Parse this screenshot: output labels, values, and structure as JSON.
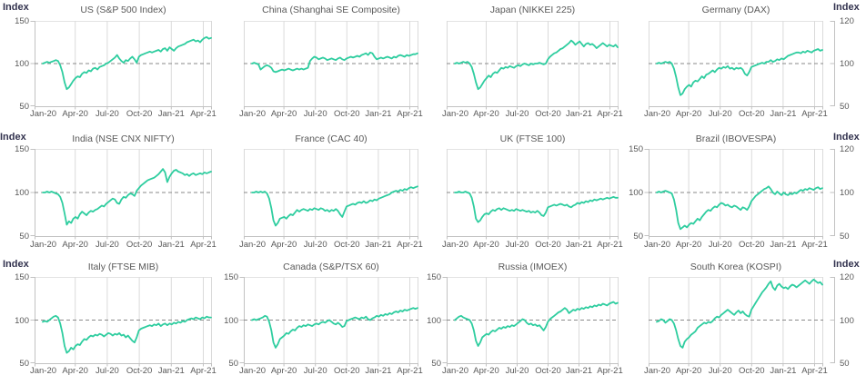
{
  "figure": {
    "unit_label": "Index"
  },
  "palette": {
    "line": "#2ecd9f",
    "baseline_dash": "#8a8a8a",
    "grid": "#dadada",
    "frame": "#e3e3e3",
    "axis": "#c2c2c2",
    "tick_text": "#595959",
    "title_text": "#595959",
    "index_label_text": "#32324e",
    "background": "#ffffff"
  },
  "chart_data": [
    {
      "type": "line",
      "title": "US (S&P 500 Index)",
      "x_ticks": [
        "Jan-20",
        "Apr-20",
        "Jul-20",
        "Oct-20",
        "Jan-21",
        "Apr-21"
      ],
      "ylim": [
        50,
        150
      ],
      "baseline": 100,
      "y_left_labels": [
        "150",
        "100",
        "50"
      ],
      "y_right_labels": null,
      "values": [
        100,
        101,
        102,
        101,
        102,
        103,
        104,
        103,
        98,
        90,
        78,
        70,
        72,
        76,
        80,
        83,
        85,
        84,
        88,
        90,
        89,
        92,
        91,
        94,
        95,
        93,
        96,
        97,
        98,
        100,
        101,
        103,
        105,
        107,
        110,
        106,
        103,
        101,
        104,
        103,
        106,
        108,
        105,
        101,
        108,
        110,
        111,
        112,
        113,
        114,
        113,
        114,
        115,
        116,
        114,
        117,
        118,
        115,
        119,
        117,
        115,
        118,
        120,
        121,
        122,
        123,
        125,
        126,
        127,
        128,
        126,
        127,
        125,
        128,
        130,
        131,
        129,
        130
      ]
    },
    {
      "type": "line",
      "title": "China (Shanghai SE Composite)",
      "x_ticks": [
        "Jan-20",
        "Apr-20",
        "Jul-20",
        "Oct-20",
        "Jan-21",
        "Apr-21"
      ],
      "ylim": [
        50,
        150
      ],
      "baseline": 100,
      "y_left_labels": null,
      "y_right_labels": null,
      "values": [
        100,
        101,
        100,
        99,
        93,
        95,
        97,
        98,
        97,
        95,
        91,
        90,
        91,
        92,
        93,
        92,
        93,
        94,
        93,
        92,
        93,
        94,
        93,
        94,
        93,
        94,
        95,
        103,
        106,
        108,
        107,
        105,
        106,
        107,
        106,
        104,
        105,
        106,
        105,
        104,
        106,
        107,
        105,
        104,
        106,
        107,
        108,
        107,
        108,
        109,
        108,
        110,
        111,
        112,
        110,
        113,
        112,
        108,
        105,
        106,
        107,
        106,
        107,
        108,
        107,
        106,
        108,
        107,
        109,
        110,
        109,
        108,
        110,
        109,
        110,
        111,
        111,
        112
      ]
    },
    {
      "type": "line",
      "title": "Japan (NIKKEI 225)",
      "x_ticks": [
        "Jan-20",
        "Apr-20",
        "Jul-20",
        "Oct-20",
        "Jan-21",
        "Apr-21"
      ],
      "ylim": [
        50,
        150
      ],
      "baseline": 100,
      "y_left_labels": null,
      "y_right_labels": null,
      "values": [
        100,
        101,
        100,
        101,
        102,
        101,
        102,
        100,
        96,
        88,
        78,
        70,
        72,
        76,
        80,
        83,
        86,
        84,
        88,
        90,
        89,
        92,
        95,
        94,
        96,
        95,
        97,
        96,
        95,
        97,
        98,
        97,
        99,
        100,
        99,
        98,
        100,
        99,
        100,
        100,
        101,
        100,
        99,
        100,
        105,
        108,
        110,
        112,
        113,
        115,
        117,
        118,
        120,
        122,
        124,
        127,
        125,
        122,
        124,
        126,
        123,
        120,
        123,
        124,
        122,
        123,
        121,
        118,
        120,
        122,
        124,
        122,
        120,
        122,
        121,
        120,
        122,
        119
      ]
    },
    {
      "type": "line",
      "title": "Germany (DAX)",
      "x_ticks": [
        "Jan-20",
        "Apr-20",
        "Jul-20",
        "Oct-20",
        "Jan-21",
        "Apr-21"
      ],
      "ylim": [
        50,
        150
      ],
      "baseline": 100,
      "y_left_labels": null,
      "y_right_labels": [
        "120",
        "100",
        "50"
      ],
      "values": [
        100,
        101,
        100,
        101,
        102,
        101,
        102,
        100,
        94,
        84,
        72,
        63,
        65,
        70,
        73,
        75,
        73,
        78,
        80,
        79,
        82,
        85,
        83,
        87,
        88,
        90,
        92,
        90,
        93,
        95,
        94,
        96,
        95,
        97,
        94,
        95,
        93,
        95,
        94,
        95,
        93,
        88,
        86,
        90,
        96,
        97,
        98,
        99,
        100,
        101,
        100,
        102,
        102,
        104,
        102,
        103,
        105,
        104,
        106,
        105,
        107,
        109,
        110,
        111,
        112,
        113,
        113,
        112,
        114,
        113,
        115,
        114,
        113,
        115,
        116,
        117,
        115,
        116
      ]
    },
    {
      "type": "line",
      "title": "India (NSE CNX NIFTY)",
      "x_ticks": [
        "Jan-20",
        "Apr-20",
        "Jul-20",
        "Oct-20",
        "Jan-21",
        "Apr-21"
      ],
      "ylim": [
        50,
        150
      ],
      "baseline": 100,
      "y_left_labels": [
        "150",
        "100",
        "50"
      ],
      "y_right_labels": null,
      "values": [
        100,
        100,
        101,
        100,
        101,
        100,
        99,
        98,
        95,
        88,
        76,
        63,
        67,
        65,
        70,
        72,
        70,
        75,
        78,
        76,
        74,
        77,
        79,
        78,
        80,
        81,
        83,
        85,
        84,
        87,
        89,
        91,
        93,
        92,
        88,
        87,
        92,
        95,
        94,
        97,
        99,
        98,
        96,
        102,
        105,
        108,
        110,
        112,
        114,
        115,
        116,
        117,
        119,
        121,
        124,
        127,
        123,
        112,
        118,
        122,
        125,
        126,
        124,
        123,
        122,
        120,
        121,
        119,
        121,
        122,
        120,
        121,
        122,
        121,
        123,
        122,
        123,
        124
      ]
    },
    {
      "type": "line",
      "title": "France (CAC 40)",
      "x_ticks": [
        "Jan-20",
        "Apr-20",
        "Jul-20",
        "Oct-20",
        "Jan-21",
        "Apr-21"
      ],
      "ylim": [
        50,
        150
      ],
      "baseline": 100,
      "y_left_labels": null,
      "y_right_labels": null,
      "values": [
        100,
        100,
        101,
        100,
        101,
        100,
        101,
        99,
        93,
        82,
        68,
        62,
        65,
        70,
        71,
        72,
        70,
        73,
        75,
        74,
        77,
        80,
        78,
        80,
        81,
        80,
        79,
        81,
        80,
        82,
        81,
        80,
        82,
        81,
        79,
        80,
        78,
        80,
        79,
        81,
        79,
        75,
        72,
        78,
        84,
        85,
        86,
        87,
        86,
        88,
        89,
        88,
        90,
        88,
        89,
        91,
        90,
        92,
        91,
        93,
        94,
        95,
        96,
        97,
        98,
        100,
        101,
        102,
        101,
        103,
        102,
        104,
        103,
        105,
        106,
        105,
        106,
        107
      ]
    },
    {
      "type": "line",
      "title": "UK (FTSE 100)",
      "x_ticks": [
        "Jan-20",
        "Apr-20",
        "Jul-20",
        "Oct-20",
        "Jan-21",
        "Apr-21"
      ],
      "ylim": [
        50,
        150
      ],
      "baseline": 100,
      "y_left_labels": null,
      "y_right_labels": null,
      "values": [
        100,
        100,
        101,
        100,
        100,
        101,
        100,
        99,
        94,
        84,
        70,
        66,
        68,
        72,
        75,
        76,
        75,
        78,
        80,
        79,
        81,
        82,
        80,
        82,
        81,
        80,
        79,
        80,
        79,
        81,
        80,
        79,
        80,
        79,
        78,
        79,
        77,
        78,
        77,
        79,
        77,
        74,
        73,
        77,
        83,
        84,
        85,
        86,
        85,
        86,
        87,
        86,
        85,
        86,
        84,
        83,
        85,
        86,
        88,
        87,
        89,
        88,
        90,
        89,
        91,
        90,
        92,
        91,
        92,
        93,
        92,
        93,
        94,
        93,
        94,
        95,
        94,
        94
      ]
    },
    {
      "type": "line",
      "title": "Brazil (IBOVESPA)",
      "x_ticks": [
        "Jan-20",
        "Apr-20",
        "Jul-20",
        "Oct-20",
        "Jan-21",
        "Apr-21"
      ],
      "ylim": [
        50,
        150
      ],
      "baseline": 100,
      "y_left_labels": [
        "150",
        "100",
        "50"
      ],
      "y_right_labels": [
        "120",
        "100",
        "50"
      ],
      "values": [
        100,
        101,
        100,
        101,
        102,
        101,
        100,
        99,
        92,
        80,
        65,
        58,
        60,
        62,
        60,
        63,
        65,
        64,
        67,
        70,
        68,
        72,
        75,
        78,
        80,
        79,
        82,
        84,
        83,
        86,
        88,
        87,
        85,
        86,
        84,
        83,
        85,
        84,
        82,
        80,
        83,
        82,
        80,
        84,
        90,
        93,
        96,
        98,
        100,
        102,
        104,
        105,
        107,
        104,
        100,
        98,
        101,
        99,
        97,
        100,
        98,
        97,
        99,
        98,
        100,
        99,
        101,
        103,
        102,
        104,
        103,
        105,
        104,
        103,
        105,
        106,
        104,
        105
      ]
    },
    {
      "type": "line",
      "title": "Italy (FTSE MIB)",
      "x_ticks": [
        "Jan-20",
        "Apr-20",
        "Jul-20",
        "Oct-20",
        "Jan-21",
        "Apr-21"
      ],
      "ylim": [
        50,
        150
      ],
      "baseline": 100,
      "y_left_labels": [
        "150",
        "100",
        "50"
      ],
      "y_right_labels": null,
      "values": [
        98,
        99,
        98,
        100,
        102,
        104,
        105,
        103,
        96,
        85,
        70,
        62,
        64,
        68,
        66,
        70,
        72,
        71,
        75,
        78,
        77,
        80,
        82,
        81,
        83,
        82,
        84,
        83,
        81,
        83,
        85,
        84,
        82,
        84,
        83,
        85,
        82,
        83,
        80,
        82,
        79,
        76,
        74,
        80,
        88,
        90,
        91,
        92,
        93,
        94,
        93,
        95,
        94,
        96,
        93,
        95,
        96,
        94,
        96,
        95,
        97,
        96,
        98,
        97,
        99,
        98,
        100,
        101,
        102,
        101,
        103,
        102,
        101,
        103,
        102,
        104,
        103,
        103
      ]
    },
    {
      "type": "line",
      "title": "Canada (S&P/TSX 60)",
      "x_ticks": [
        "Jan-20",
        "Apr-20",
        "Jul-20",
        "Oct-20",
        "Jan-21",
        "Apr-21"
      ],
      "ylim": [
        50,
        150
      ],
      "baseline": 100,
      "y_left_labels": [
        "150",
        "100",
        "50"
      ],
      "y_right_labels": null,
      "values": [
        100,
        101,
        100,
        101,
        102,
        103,
        105,
        104,
        98,
        88,
        74,
        68,
        72,
        78,
        80,
        82,
        85,
        84,
        87,
        89,
        88,
        91,
        93,
        92,
        94,
        93,
        95,
        94,
        93,
        95,
        96,
        95,
        97,
        98,
        97,
        99,
        100,
        98,
        96,
        95,
        97,
        95,
        92,
        93,
        99,
        100,
        101,
        102,
        103,
        102,
        101,
        103,
        102,
        104,
        101,
        100,
        102,
        103,
        105,
        104,
        106,
        105,
        107,
        106,
        108,
        107,
        109,
        110,
        109,
        111,
        110,
        112,
        111,
        112,
        113,
        114,
        113,
        114
      ]
    },
    {
      "type": "line",
      "title": "Russia (IMOEX)",
      "x_ticks": [
        "Jan-20",
        "Apr-20",
        "Jul-20",
        "Oct-20",
        "Jan-21",
        "Apr-21"
      ],
      "ylim": [
        50,
        150
      ],
      "baseline": 100,
      "y_left_labels": [
        "150",
        "100",
        "50"
      ],
      "y_right_labels": null,
      "values": [
        100,
        102,
        104,
        105,
        103,
        102,
        101,
        100,
        96,
        88,
        76,
        70,
        74,
        80,
        82,
        84,
        83,
        86,
        88,
        87,
        89,
        91,
        90,
        92,
        91,
        93,
        92,
        94,
        93,
        95,
        97,
        99,
        101,
        100,
        97,
        95,
        96,
        94,
        95,
        93,
        94,
        91,
        88,
        92,
        98,
        101,
        103,
        105,
        107,
        109,
        110,
        112,
        114,
        112,
        108,
        110,
        112,
        111,
        113,
        112,
        114,
        113,
        115,
        114,
        116,
        115,
        117,
        116,
        118,
        117,
        119,
        118,
        117,
        119,
        120,
        121,
        119,
        120
      ]
    },
    {
      "type": "line",
      "title": "South Korea (KOSPI)",
      "x_ticks": [
        "Jan-20",
        "Apr-20",
        "Jul-20",
        "Oct-20",
        "Jan-21",
        "Apr-21"
      ],
      "ylim": [
        50,
        150
      ],
      "baseline": 100,
      "y_left_labels": null,
      "y_right_labels": [
        "120",
        "100",
        "50"
      ],
      "values": [
        98,
        99,
        101,
        100,
        97,
        99,
        101,
        100,
        96,
        88,
        78,
        70,
        68,
        75,
        78,
        80,
        83,
        85,
        87,
        91,
        93,
        95,
        97,
        96,
        98,
        97,
        99,
        102,
        104,
        103,
        106,
        108,
        110,
        112,
        110,
        108,
        106,
        109,
        111,
        108,
        110,
        107,
        105,
        104,
        112,
        116,
        120,
        124,
        128,
        132,
        135,
        138,
        142,
        145,
        138,
        135,
        140,
        142,
        139,
        137,
        138,
        136,
        139,
        141,
        140,
        138,
        140,
        142,
        144,
        146,
        144,
        142,
        145,
        147,
        145,
        143,
        144,
        141
      ]
    }
  ]
}
